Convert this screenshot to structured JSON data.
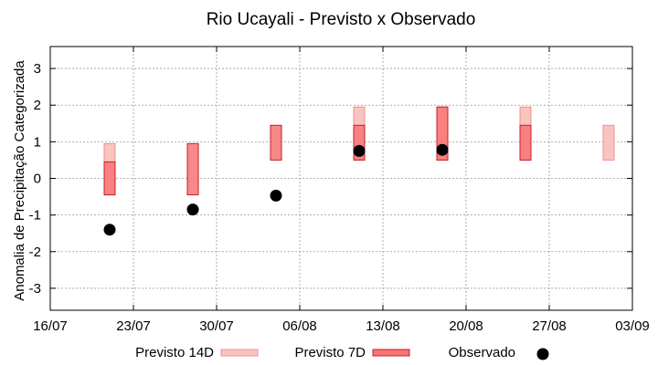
{
  "chart_data": {
    "type": "range-bar-scatter",
    "title": "Rio Ucayali - Previsto x Observado",
    "xlabel": "",
    "ylabel": "Anomalia de Precipitação Categorizada",
    "xlim": [
      "2024-07-16",
      "2024-09-03"
    ],
    "ylim": [
      -3.6,
      3.6
    ],
    "grid": true,
    "x_tick_labels": [
      "16/07",
      "23/07",
      "30/07",
      "06/08",
      "13/08",
      "20/08",
      "27/08",
      "03/09"
    ],
    "y_ticks": [
      3,
      2,
      1,
      0,
      -1,
      -2,
      -3
    ],
    "y_tick_labels": [
      "3",
      "2",
      "1",
      "0",
      "-1",
      "-2",
      "-3"
    ],
    "legend_position": "bottom",
    "series": [
      {
        "name": "Previsto 14D",
        "kind": "range",
        "color": "#f9c4bf",
        "stroke": "#f08f88",
        "points": [
          {
            "x": "2024-07-21",
            "low": -0.45,
            "high": 0.95
          },
          {
            "x": "2024-08-11",
            "low": 0.5,
            "high": 1.95
          },
          {
            "x": "2024-08-18",
            "low": 0.5,
            "high": 1.95
          },
          {
            "x": "2024-08-25",
            "low": 0.5,
            "high": 1.95
          },
          {
            "x": "2024-09-01",
            "low": 0.5,
            "high": 1.45
          }
        ]
      },
      {
        "name": "Previsto 7D",
        "kind": "range",
        "color": "#f87474",
        "stroke": "#c0202a",
        "points": [
          {
            "x": "2024-07-21",
            "low": -0.45,
            "high": 0.45
          },
          {
            "x": "2024-07-28",
            "low": -0.45,
            "high": 0.95
          },
          {
            "x": "2024-08-04",
            "low": 0.5,
            "high": 1.45
          },
          {
            "x": "2024-08-11",
            "low": 0.5,
            "high": 1.45
          },
          {
            "x": "2024-08-18",
            "low": 0.5,
            "high": 1.95
          },
          {
            "x": "2024-08-25",
            "low": 0.5,
            "high": 1.45
          }
        ]
      },
      {
        "name": "Observado",
        "kind": "point",
        "color": "#000000",
        "points": [
          {
            "x": "2024-07-21",
            "y": -1.4
          },
          {
            "x": "2024-07-28",
            "y": -0.85
          },
          {
            "x": "2024-08-04",
            "y": -0.47
          },
          {
            "x": "2024-08-11",
            "y": 0.75
          },
          {
            "x": "2024-08-18",
            "y": 0.78
          }
        ]
      }
    ]
  }
}
